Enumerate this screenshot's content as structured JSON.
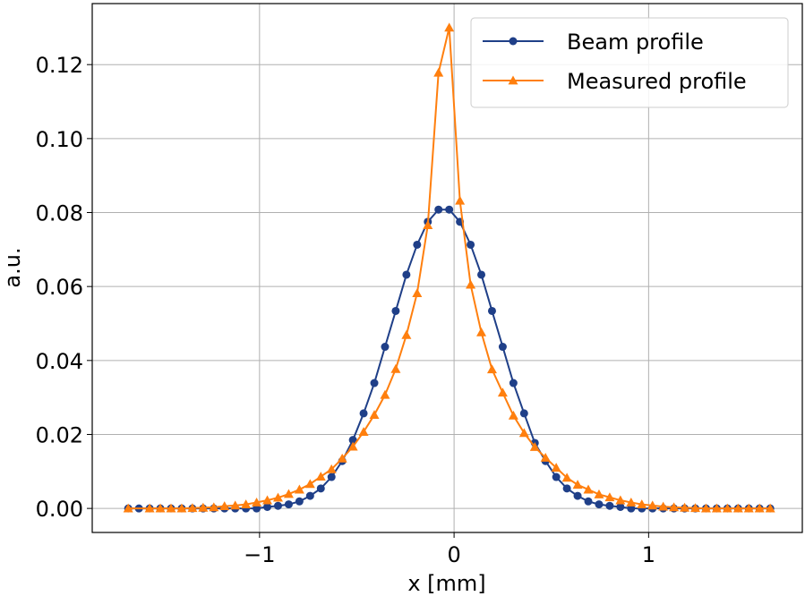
{
  "chart_data": {
    "type": "line",
    "title": "",
    "xlabel": "x [mm]",
    "ylabel": "a.u.",
    "xlim": [
      -1.86,
      1.79
    ],
    "ylim": [
      -0.0065,
      0.1365
    ],
    "xticks": [
      -1,
      0,
      1
    ],
    "xtick_labels": [
      "−1",
      "0",
      "1"
    ],
    "yticks": [
      0.0,
      0.02,
      0.04,
      0.06,
      0.08,
      0.1,
      0.12
    ],
    "ytick_labels": [
      "0.00",
      "0.02",
      "0.04",
      "0.06",
      "0.08",
      "0.10",
      "0.12"
    ],
    "grid": true,
    "legend_position": "top-right",
    "series": [
      {
        "name": "Beam profile",
        "color": "#1f3f88",
        "marker": "circle",
        "x": [
          -1.675,
          -1.62,
          -1.565,
          -1.51,
          -1.455,
          -1.4,
          -1.345,
          -1.29,
          -1.235,
          -1.18,
          -1.125,
          -1.07,
          -1.015,
          -0.96,
          -0.905,
          -0.85,
          -0.795,
          -0.74,
          -0.685,
          -0.63,
          -0.575,
          -0.52,
          -0.465,
          -0.41,
          -0.355,
          -0.3,
          -0.245,
          -0.19,
          -0.135,
          -0.08,
          -0.025,
          0.03,
          0.085,
          0.14,
          0.195,
          0.25,
          0.305,
          0.36,
          0.415,
          0.47,
          0.525,
          0.58,
          0.635,
          0.69,
          0.745,
          0.8,
          0.855,
          0.91,
          0.965,
          1.02,
          1.075,
          1.13,
          1.185,
          1.24,
          1.295,
          1.35,
          1.405,
          1.46,
          1.515,
          1.57,
          1.625
        ],
        "y": [
          0.0,
          0.0,
          0.0,
          0.0,
          0.0,
          0.0,
          0.0,
          0.0,
          0.0,
          0.0,
          0.0,
          0.0,
          0.0,
          0.0004,
          0.0007,
          0.0011,
          0.0019,
          0.0034,
          0.0054,
          0.0085,
          0.0128,
          0.0185,
          0.0257,
          0.0339,
          0.0437,
          0.0534,
          0.0632,
          0.0713,
          0.0775,
          0.0808,
          0.0808,
          0.0775,
          0.0713,
          0.0632,
          0.0534,
          0.0437,
          0.0339,
          0.0257,
          0.0177,
          0.0128,
          0.0085,
          0.0054,
          0.0034,
          0.0019,
          0.0011,
          0.0007,
          0.0004,
          0.0,
          0.0,
          0.0,
          0.0,
          0.0,
          0.0,
          0.0,
          0.0,
          0.0,
          0.0,
          0.0,
          0.0,
          0.0,
          0.0
        ]
      },
      {
        "name": "Measured profile",
        "color": "#ff7f0e",
        "marker": "triangle",
        "x": [
          -1.675,
          -1.565,
          -1.51,
          -1.455,
          -1.4,
          -1.345,
          -1.29,
          -1.235,
          -1.18,
          -1.125,
          -1.07,
          -1.015,
          -0.96,
          -0.905,
          -0.85,
          -0.795,
          -0.74,
          -0.685,
          -0.63,
          -0.575,
          -0.52,
          -0.465,
          -0.41,
          -0.355,
          -0.3,
          -0.245,
          -0.19,
          -0.135,
          -0.08,
          -0.025,
          0.03,
          0.085,
          0.14,
          0.195,
          0.25,
          0.305,
          0.36,
          0.415,
          0.47,
          0.525,
          0.58,
          0.635,
          0.69,
          0.745,
          0.8,
          0.855,
          0.91,
          0.965,
          1.02,
          1.075,
          1.13,
          1.185,
          1.24,
          1.295,
          1.35,
          1.405,
          1.46,
          1.515,
          1.57,
          1.625
        ],
        "y": [
          0.0,
          0.0,
          0.0,
          0.0,
          0.0,
          0.0001,
          0.0002,
          0.0003,
          0.0006,
          0.0008,
          0.0011,
          0.0016,
          0.0022,
          0.0029,
          0.0039,
          0.0051,
          0.0066,
          0.0086,
          0.0106,
          0.0135,
          0.0167,
          0.0207,
          0.0253,
          0.0307,
          0.0377,
          0.0469,
          0.0582,
          0.0766,
          0.1178,
          0.13,
          0.0832,
          0.0605,
          0.0476,
          0.0376,
          0.0313,
          0.0251,
          0.0204,
          0.0166,
          0.0137,
          0.011,
          0.0083,
          0.0064,
          0.0051,
          0.0038,
          0.003,
          0.0022,
          0.0016,
          0.0011,
          0.0008,
          0.0005,
          0.0003,
          0.0002,
          0.0001,
          0.0,
          0.0,
          0.0,
          0.0,
          0.0,
          0.0,
          0.0
        ]
      }
    ]
  }
}
